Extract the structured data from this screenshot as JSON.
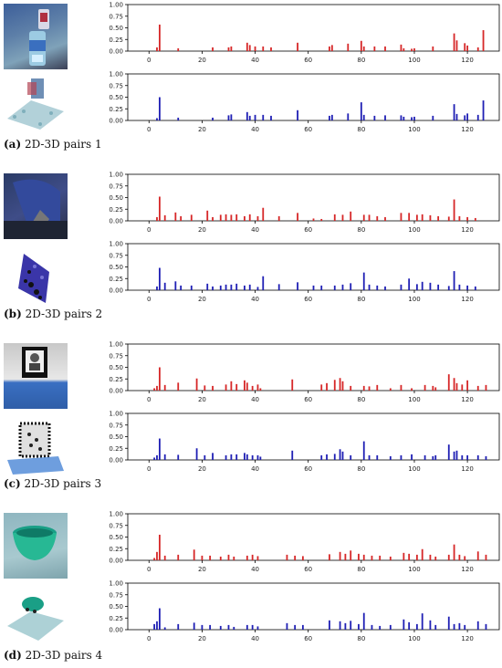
{
  "figure": {
    "x_ticks": [
      "0",
      "20",
      "40",
      "60",
      "80",
      "100",
      "120"
    ],
    "y_ticks": [
      "0.00",
      "0.25",
      "0.50",
      "0.75",
      "1.00"
    ],
    "colors": {
      "image_bars": "#d62728",
      "cloud_bars": "#1f1fb4",
      "axis": "#000000"
    },
    "pairs": [
      {
        "caption_letter": "(a)",
        "caption_text": " 2D-3D pairs 1"
      },
      {
        "caption_letter": "(b)",
        "caption_text": " 2D-3D pairs 2"
      },
      {
        "caption_letter": "(c)",
        "caption_text": " 2D-3D pairs 3"
      },
      {
        "caption_letter": "(d)",
        "caption_text": " 2D-3D pairs 4"
      }
    ]
  },
  "chart_data": [
    {
      "type": "bar",
      "ylim": [
        0,
        1
      ],
      "xlim": [
        -8,
        132
      ],
      "color": "#d62728",
      "x": [
        4,
        3,
        11,
        24,
        30,
        31,
        37,
        38,
        40,
        43,
        46,
        56,
        68,
        69,
        75,
        80,
        81,
        85,
        89,
        95,
        96,
        99,
        100,
        107,
        115,
        116,
        119,
        120,
        124,
        126
      ],
      "values": [
        0.57,
        0.08,
        0.06,
        0.08,
        0.08,
        0.1,
        0.18,
        0.13,
        0.1,
        0.1,
        0.08,
        0.18,
        0.1,
        0.13,
        0.16,
        0.22,
        0.1,
        0.1,
        0.1,
        0.14,
        0.06,
        0.05,
        0.06,
        0.1,
        0.38,
        0.23,
        0.17,
        0.12,
        0.08,
        0.45
      ]
    },
    {
      "type": "bar",
      "ylim": [
        0,
        1
      ],
      "xlim": [
        -8,
        132
      ],
      "color": "#1f1fb4",
      "x": [
        4,
        3,
        11,
        24,
        30,
        31,
        37,
        38,
        40,
        43,
        46,
        56,
        68,
        69,
        75,
        80,
        81,
        85,
        89,
        95,
        96,
        99,
        100,
        107,
        115,
        116,
        119,
        120,
        124,
        126
      ],
      "values": [
        0.5,
        0.05,
        0.06,
        0.06,
        0.11,
        0.13,
        0.18,
        0.1,
        0.12,
        0.12,
        0.1,
        0.22,
        0.1,
        0.12,
        0.15,
        0.39,
        0.12,
        0.1,
        0.11,
        0.11,
        0.08,
        0.07,
        0.08,
        0.1,
        0.35,
        0.14,
        0.11,
        0.15,
        0.12,
        0.43
      ]
    },
    {
      "type": "bar",
      "ylim": [
        0,
        1
      ],
      "xlim": [
        -8,
        132
      ],
      "color": "#d62728",
      "x": [
        3,
        4,
        6,
        10,
        12,
        16,
        22,
        24,
        27,
        29,
        31,
        33,
        36,
        38,
        41,
        43,
        49,
        56,
        62,
        65,
        70,
        73,
        76,
        81,
        83,
        86,
        89,
        95,
        98,
        101,
        103,
        106,
        109,
        113,
        115,
        117,
        120,
        123
      ],
      "values": [
        0.08,
        0.52,
        0.12,
        0.18,
        0.1,
        0.13,
        0.22,
        0.08,
        0.13,
        0.14,
        0.13,
        0.14,
        0.1,
        0.14,
        0.1,
        0.28,
        0.1,
        0.17,
        0.05,
        0.04,
        0.14,
        0.13,
        0.2,
        0.13,
        0.13,
        0.1,
        0.08,
        0.17,
        0.17,
        0.13,
        0.14,
        0.12,
        0.1,
        0.09,
        0.46,
        0.1,
        0.08,
        0.06
      ]
    },
    {
      "type": "bar",
      "ylim": [
        0,
        1
      ],
      "xlim": [
        -8,
        132
      ],
      "color": "#1f1fb4",
      "x": [
        3,
        4,
        6,
        10,
        12,
        16,
        22,
        24,
        27,
        29,
        31,
        33,
        36,
        38,
        41,
        43,
        49,
        56,
        62,
        65,
        70,
        73,
        76,
        81,
        83,
        86,
        89,
        95,
        98,
        101,
        103,
        106,
        109,
        113,
        115,
        117,
        120,
        123
      ],
      "values": [
        0.08,
        0.48,
        0.16,
        0.19,
        0.1,
        0.1,
        0.14,
        0.08,
        0.1,
        0.12,
        0.12,
        0.14,
        0.1,
        0.12,
        0.07,
        0.3,
        0.13,
        0.17,
        0.1,
        0.1,
        0.1,
        0.12,
        0.15,
        0.38,
        0.12,
        0.1,
        0.08,
        0.12,
        0.25,
        0.13,
        0.18,
        0.16,
        0.12,
        0.09,
        0.41,
        0.12,
        0.1,
        0.08
      ]
    },
    {
      "type": "bar",
      "ylim": [
        0,
        1
      ],
      "xlim": [
        -8,
        132
      ],
      "color": "#d62728",
      "x": [
        2,
        3,
        4,
        6,
        11,
        18,
        21,
        24,
        29,
        31,
        33,
        36,
        37,
        39,
        41,
        42,
        54,
        65,
        67,
        70,
        72,
        73,
        76,
        81,
        83,
        86,
        91,
        95,
        99,
        104,
        107,
        108,
        113,
        115,
        116,
        118,
        120,
        124,
        127
      ],
      "values": [
        0.05,
        0.1,
        0.5,
        0.12,
        0.17,
        0.26,
        0.11,
        0.1,
        0.13,
        0.2,
        0.14,
        0.22,
        0.17,
        0.1,
        0.13,
        0.05,
        0.24,
        0.13,
        0.16,
        0.23,
        0.27,
        0.2,
        0.1,
        0.1,
        0.09,
        0.12,
        0.05,
        0.12,
        0.05,
        0.12,
        0.1,
        0.07,
        0.35,
        0.27,
        0.16,
        0.13,
        0.22,
        0.1,
        0.12
      ]
    },
    {
      "type": "bar",
      "ylim": [
        0,
        1
      ],
      "xlim": [
        -8,
        132
      ],
      "color": "#1f1fb4",
      "x": [
        2,
        3,
        4,
        6,
        11,
        18,
        21,
        24,
        29,
        31,
        33,
        36,
        37,
        39,
        41,
        42,
        54,
        65,
        67,
        70,
        72,
        73,
        76,
        81,
        83,
        86,
        91,
        95,
        99,
        104,
        107,
        108,
        113,
        115,
        116,
        118,
        120,
        124,
        127
      ],
      "values": [
        0.05,
        0.1,
        0.46,
        0.12,
        0.11,
        0.25,
        0.1,
        0.15,
        0.1,
        0.12,
        0.12,
        0.15,
        0.12,
        0.1,
        0.1,
        0.07,
        0.2,
        0.1,
        0.12,
        0.13,
        0.23,
        0.18,
        0.1,
        0.4,
        0.1,
        0.1,
        0.08,
        0.1,
        0.12,
        0.1,
        0.08,
        0.1,
        0.33,
        0.18,
        0.2,
        0.1,
        0.1,
        0.1,
        0.08
      ]
    },
    {
      "type": "bar",
      "ylim": [
        0,
        1
      ],
      "xlim": [
        -8,
        132
      ],
      "color": "#d62728",
      "x": [
        2,
        3,
        4,
        6,
        11,
        17,
        20,
        23,
        27,
        30,
        32,
        37,
        39,
        41,
        52,
        55,
        58,
        68,
        72,
        74,
        76,
        79,
        81,
        84,
        87,
        91,
        96,
        98,
        101,
        103,
        106,
        108,
        113,
        115,
        117,
        119,
        124,
        127
      ],
      "values": [
        0.05,
        0.18,
        0.55,
        0.1,
        0.12,
        0.23,
        0.1,
        0.1,
        0.08,
        0.12,
        0.08,
        0.1,
        0.12,
        0.09,
        0.12,
        0.1,
        0.09,
        0.13,
        0.18,
        0.14,
        0.21,
        0.14,
        0.12,
        0.1,
        0.1,
        0.08,
        0.16,
        0.14,
        0.12,
        0.24,
        0.12,
        0.08,
        0.12,
        0.34,
        0.12,
        0.09,
        0.19,
        0.12
      ]
    },
    {
      "type": "bar",
      "ylim": [
        0,
        1
      ],
      "xlim": [
        -8,
        132
      ],
      "color": "#1f1fb4",
      "x": [
        2,
        3,
        4,
        6,
        11,
        17,
        20,
        23,
        27,
        30,
        32,
        37,
        39,
        41,
        52,
        55,
        58,
        68,
        72,
        74,
        76,
        79,
        81,
        84,
        87,
        91,
        96,
        98,
        101,
        103,
        106,
        108,
        113,
        115,
        117,
        119,
        124,
        127
      ],
      "values": [
        0.12,
        0.18,
        0.46,
        0.05,
        0.12,
        0.15,
        0.1,
        0.1,
        0.08,
        0.1,
        0.06,
        0.1,
        0.1,
        0.07,
        0.14,
        0.1,
        0.1,
        0.2,
        0.18,
        0.14,
        0.19,
        0.12,
        0.36,
        0.1,
        0.08,
        0.1,
        0.22,
        0.16,
        0.12,
        0.35,
        0.2,
        0.1,
        0.28,
        0.12,
        0.14,
        0.1,
        0.18,
        0.12
      ]
    }
  ]
}
